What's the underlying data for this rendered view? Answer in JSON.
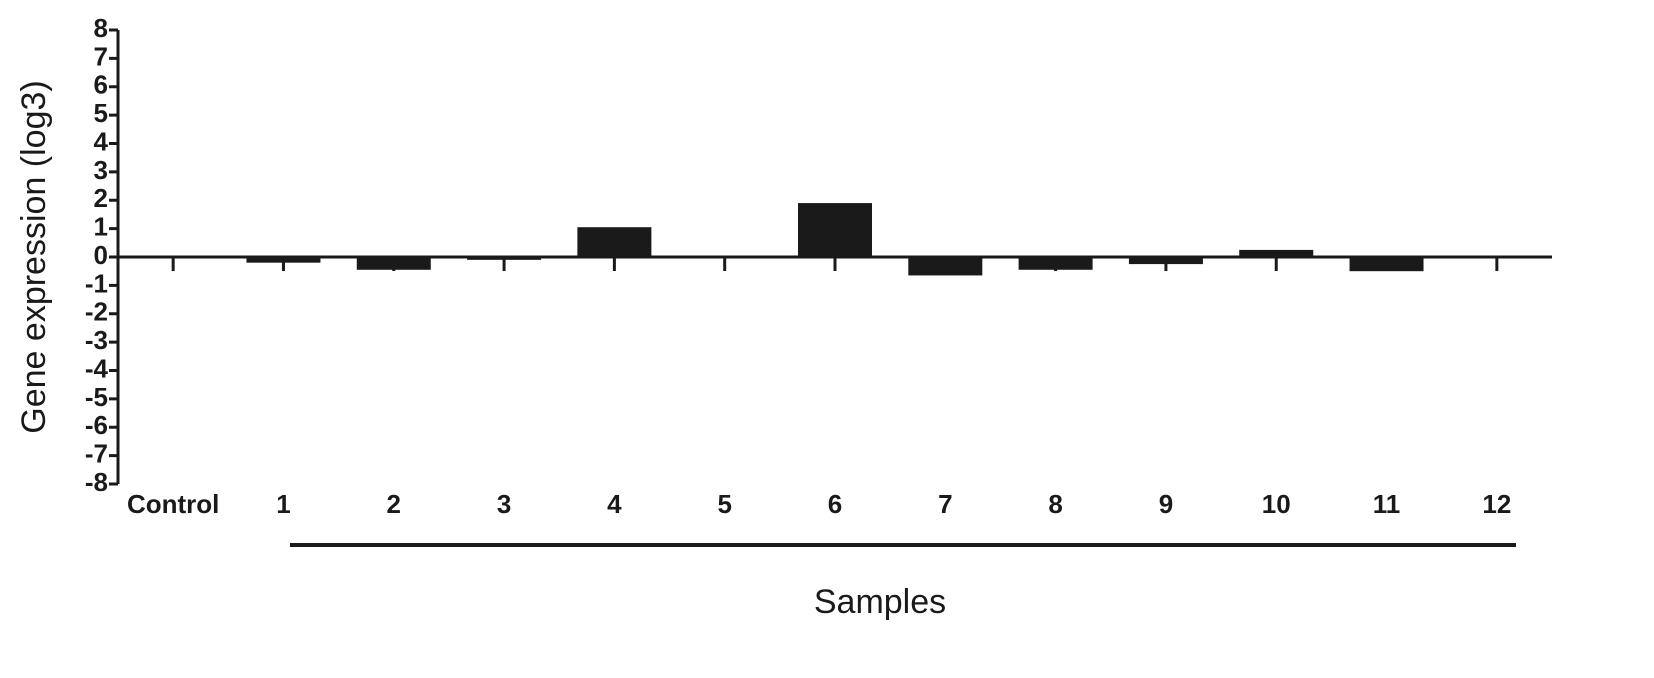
{
  "chart_data": {
    "type": "bar",
    "ylabel": "Gene expression (log3)",
    "xlabel": "Samples",
    "categories": [
      "Control",
      "1",
      "2",
      "3",
      "4",
      "5",
      "6",
      "7",
      "8",
      "9",
      "10",
      "11",
      "12"
    ],
    "values": [
      0,
      -0.2,
      -0.45,
      -0.1,
      1.05,
      0,
      1.9,
      -0.65,
      -0.45,
      -0.25,
      0.25,
      -0.5,
      0.05
    ],
    "color": "#1a1a1a",
    "ylim": [
      -8,
      8
    ],
    "yticks": [
      -8,
      -7,
      -6,
      -5,
      -4,
      -3,
      -2,
      -1,
      0,
      1,
      2,
      3,
      4,
      5,
      6,
      7,
      8
    ],
    "grid": false
  }
}
